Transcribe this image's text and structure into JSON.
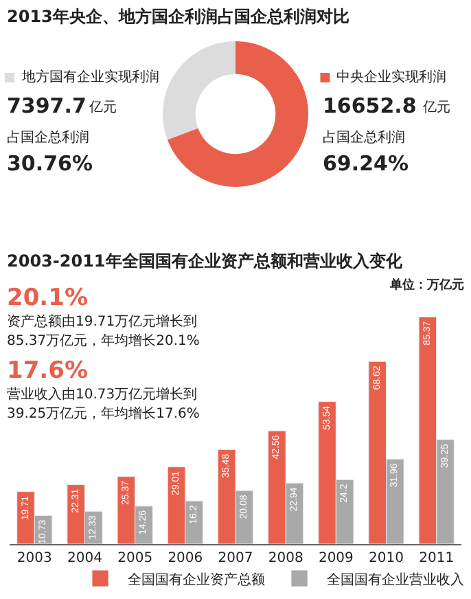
{
  "chart_data": [
    {
      "type": "donut",
      "title": "2013年央企、地方国企利润占国企总利润对比",
      "categories": [
        "地方国有企业实现利润",
        "中央企业实现利润"
      ],
      "values": [
        7397.7,
        16652.8
      ],
      "value_labels": [
        "7397.7",
        "16652.8"
      ],
      "colors": [
        "#dcdcdc",
        "#e8604c"
      ],
      "annotations": [
        "亿元",
        "占国企总利润",
        "30.76%",
        "亿元",
        "占国企总利润",
        "69.24%"
      ],
      "legend": "left"
    },
    {
      "type": "bar",
      "title": "2003-2011年全国国有企业资产总额和营业收入变化",
      "categories": [
        "2003",
        "2004",
        "2005",
        "2006",
        "2007",
        "2008",
        "2009",
        "2010",
        "2011"
      ],
      "series": [
        {
          "name": "全国国有企业资产总额",
          "color": "#e8604c",
          "values": [
            19.71,
            22.31,
            25.37,
            29.01,
            35.48,
            42.56,
            53.54,
            68.62,
            85.37
          ]
        },
        {
          "name": "全国国有企业营业收入",
          "color": "#a9a9a9",
          "values": [
            10.73,
            12.33,
            14.26,
            16.2,
            20.08,
            22.94,
            24.2,
            31.96,
            39.25
          ]
        }
      ],
      "data_labels": true,
      "tick_labels": "x",
      "grid": false,
      "legend": "bottom right",
      "annotations": [
        "单位：万亿元",
        "20.1%",
        "资产总额由19.71万亿元增长到",
        "85.37万亿元，年均增长20.1%",
        "17.6%",
        "营业收入由10.73万亿元增长到",
        "39.25万亿元，年均增长17.6%"
      ]
    }
  ]
}
